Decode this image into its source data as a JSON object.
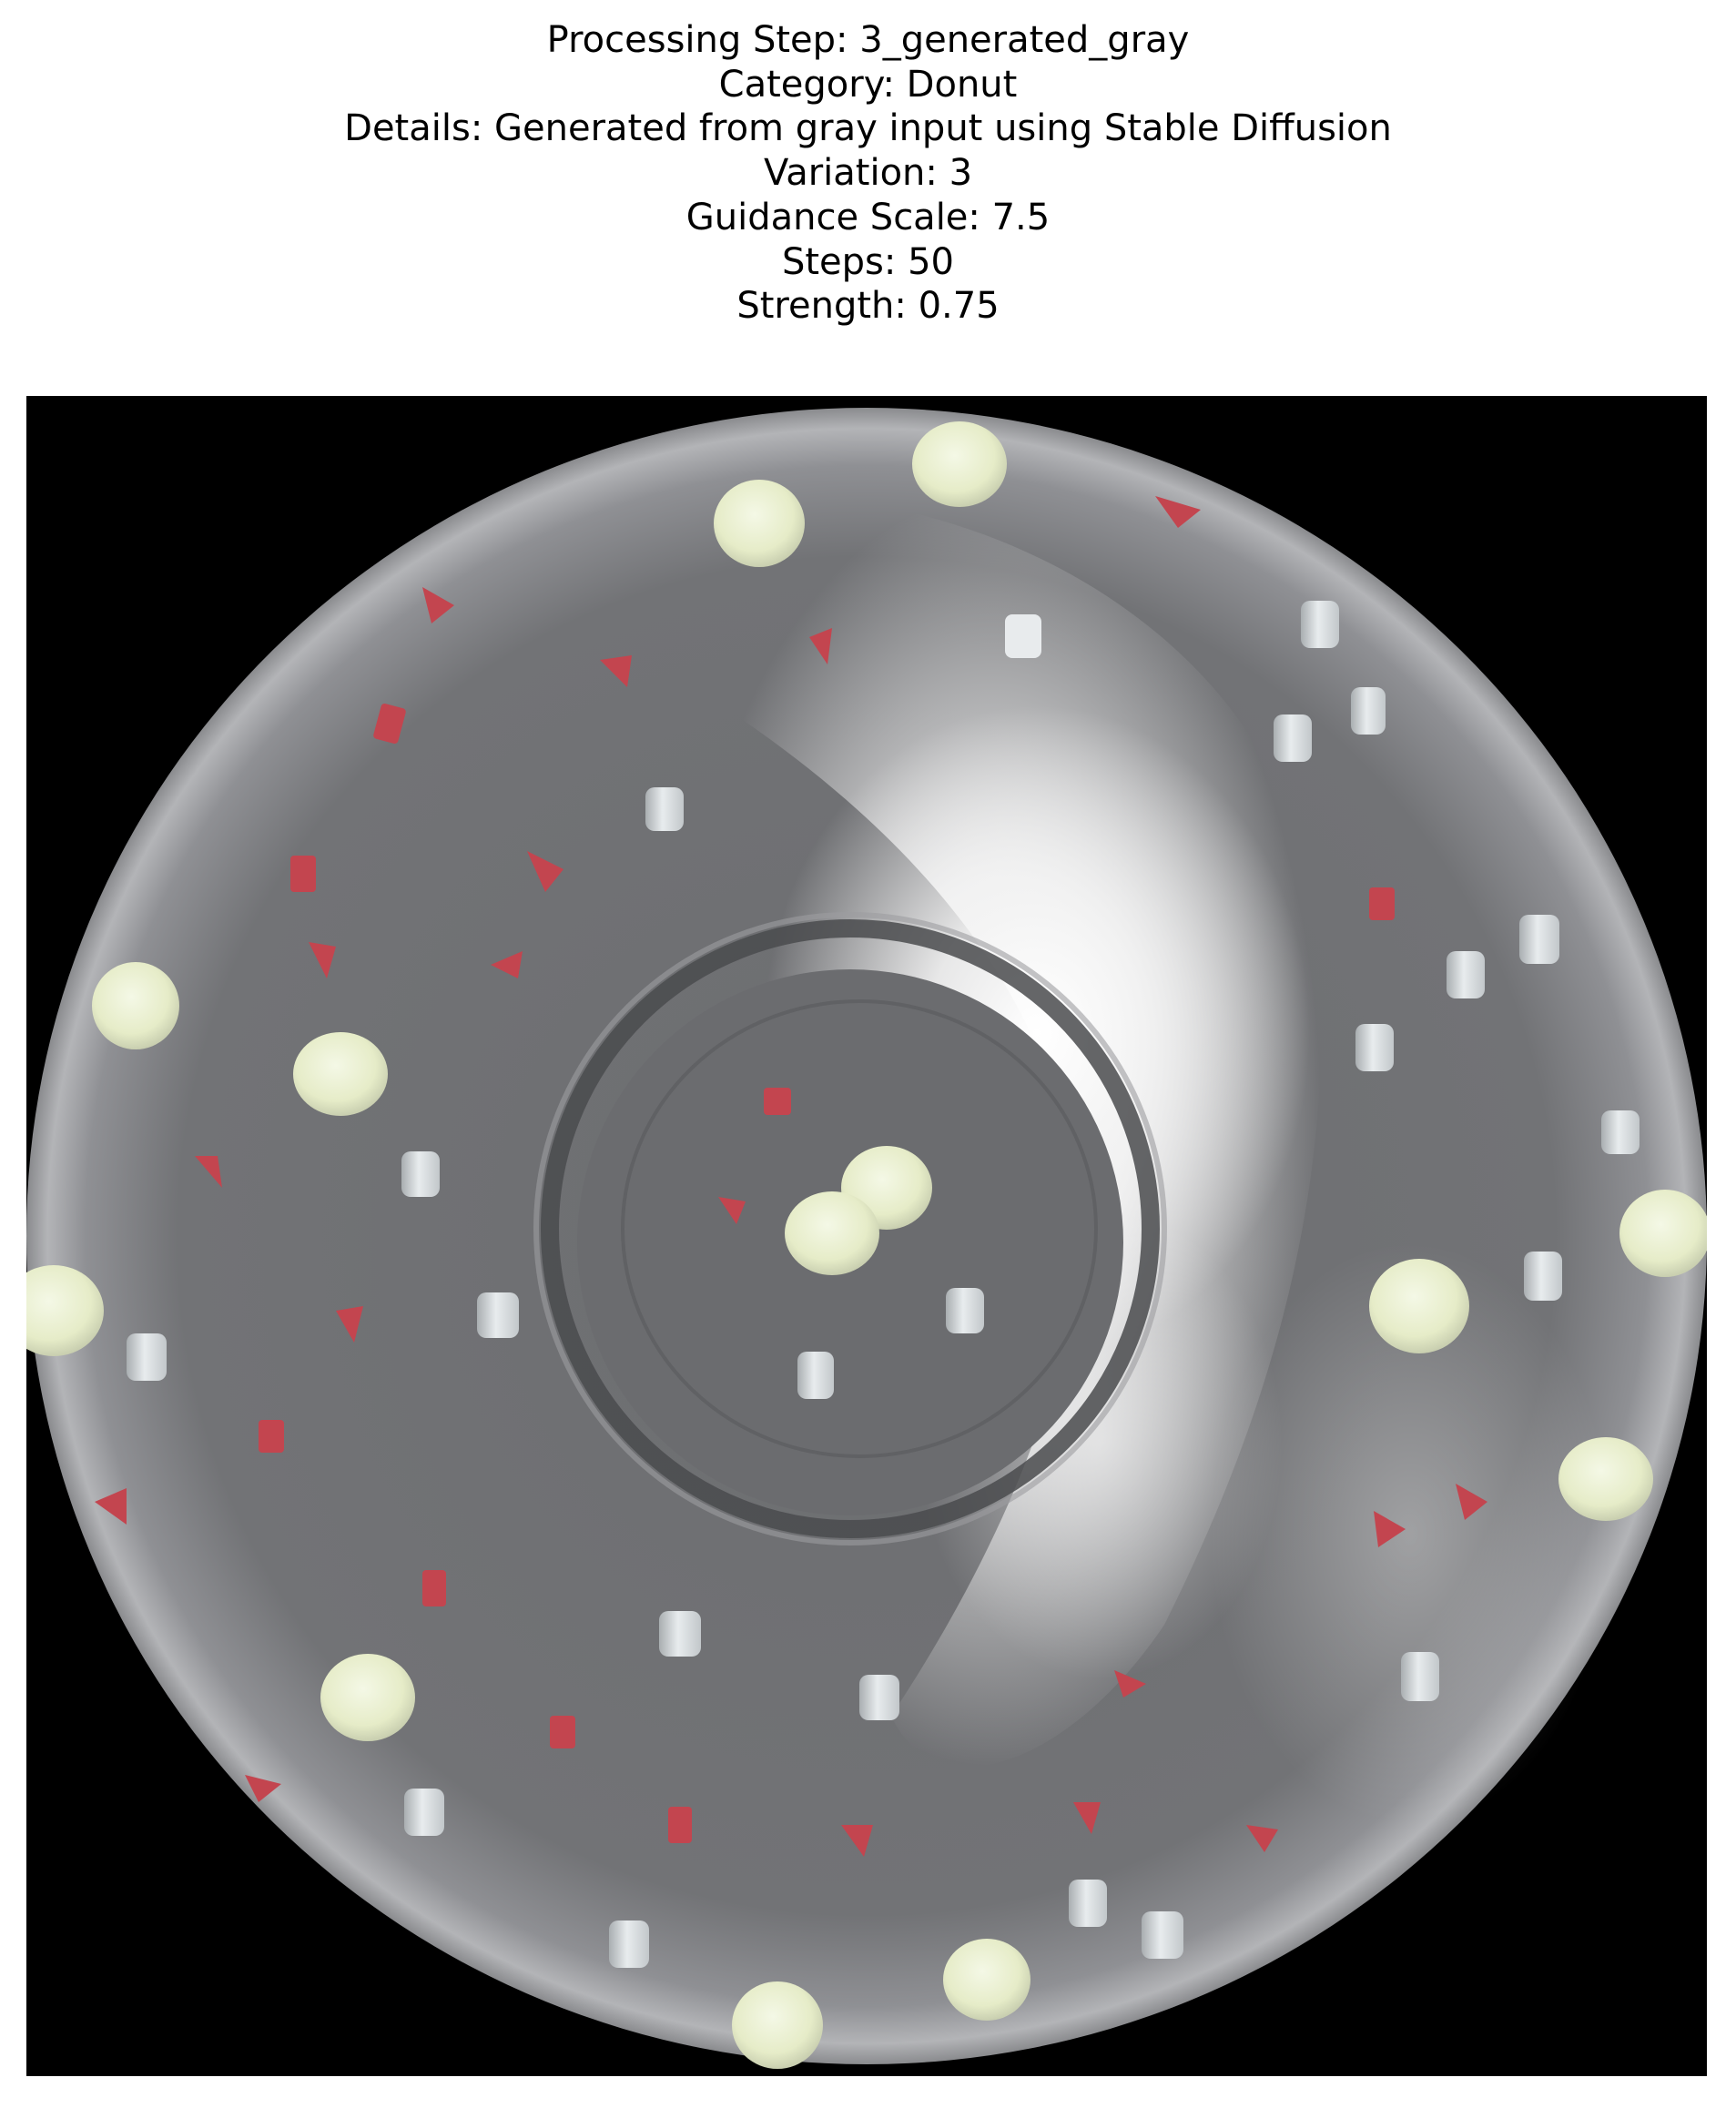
{
  "title_lines": [
    "Processing Step: 3_generated_gray",
    "Category: Donut",
    "Details: Generated from gray input using Stable Diffusion",
    "Variation: 3",
    "Guidance Scale: 7.5",
    "Steps: 50",
    "Strength: 0.75"
  ],
  "image": {
    "subject": "gray-donut-with-sprinkles",
    "background_color": "#000000",
    "icing_color": "#6f7072",
    "highlight_color": "#ffffff",
    "sprinkle_colors": {
      "round": "#eef3d9",
      "white": "#d9dee0",
      "red": "#c3454f"
    }
  }
}
